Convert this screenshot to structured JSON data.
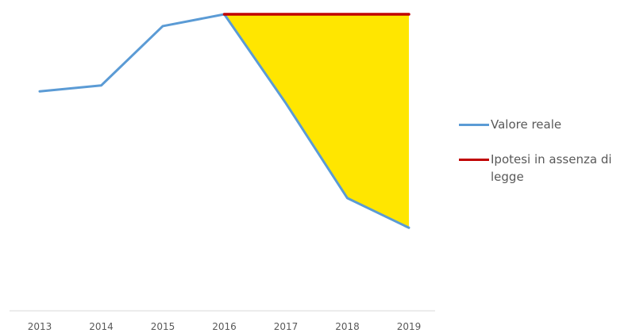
{
  "chart_data": {
    "type": "line",
    "title": "",
    "xlabel": "",
    "ylabel": "",
    "categories": [
      "2013",
      "2014",
      "2015",
      "2016",
      "2017",
      "2018",
      "2019"
    ],
    "ylim": [
      0,
      100
    ],
    "y_axis_visible": false,
    "grid": false,
    "legend_position": "right",
    "series": [
      {
        "name": "Valore reale",
        "color": "#5B9BD5",
        "values": [
          74,
          76,
          96,
          100,
          70,
          38,
          28
        ]
      },
      {
        "name": "Ipotesi in assenza di legge",
        "color": "#C00000",
        "values": [
          null,
          null,
          null,
          100,
          100,
          100,
          100
        ]
      }
    ],
    "shaded_area": {
      "between": [
        "Ipotesi in assenza di legge",
        "Valore reale"
      ],
      "from": "2016",
      "to": "2019",
      "color": "#FFE600"
    }
  }
}
